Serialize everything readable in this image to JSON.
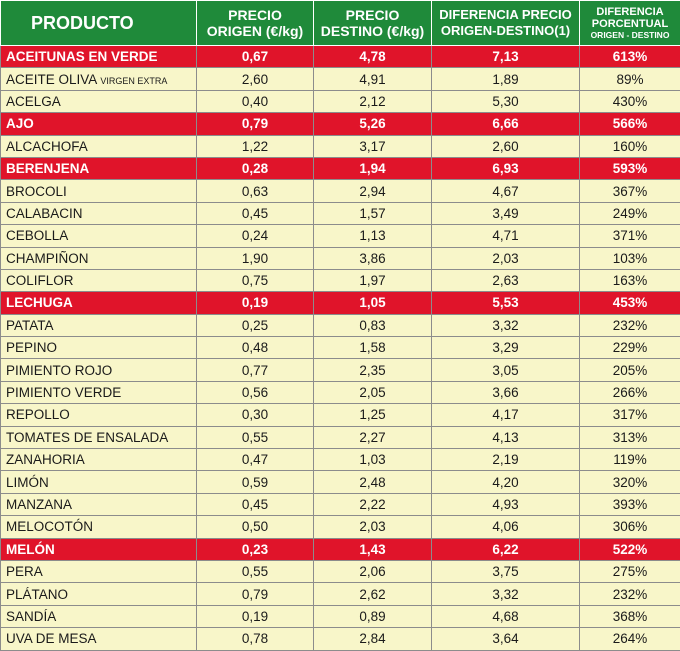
{
  "headers": {
    "producto": "PRODUCTO",
    "precio_origen": [
      "PRECIO",
      "ORIGEN (€/kg)"
    ],
    "precio_destino": [
      "PRECIO",
      "DESTINO (€/kg)"
    ],
    "diferencia": [
      "DIFERENCIA PRECIO",
      "ORIGEN-DESTINO(1)"
    ],
    "diferencia_pct": [
      "DIFERENCIA",
      "PORCENTUAL",
      "ORIGEN - DESTINO"
    ]
  },
  "colors": {
    "header_bg": "#1f8a3a",
    "highlight_bg": "#e0142a",
    "row_bg": "#f8f6c9"
  },
  "rows": [
    {
      "producto": "ACEITUNAS EN VERDE",
      "nota": "",
      "origen": "0,67",
      "destino": "4,78",
      "diferencia": "7,13",
      "porcentaje": "613%",
      "destacado": true
    },
    {
      "producto": "ACEITE OLIVA",
      "nota": "VIRGEN EXTRA",
      "origen": "2,60",
      "destino": "4,91",
      "diferencia": "1,89",
      "porcentaje": "89%",
      "destacado": false
    },
    {
      "producto": "ACELGA",
      "nota": "",
      "origen": "0,40",
      "destino": "2,12",
      "diferencia": "5,30",
      "porcentaje": "430%",
      "destacado": false
    },
    {
      "producto": "AJO",
      "nota": "",
      "origen": "0,79",
      "destino": "5,26",
      "diferencia": "6,66",
      "porcentaje": "566%",
      "destacado": true
    },
    {
      "producto": "ALCACHOFA",
      "nota": "",
      "origen": "1,22",
      "destino": "3,17",
      "diferencia": "2,60",
      "porcentaje": "160%",
      "destacado": false
    },
    {
      "producto": "BERENJENA",
      "nota": "",
      "origen": "0,28",
      "destino": "1,94",
      "diferencia": "6,93",
      "porcentaje": "593%",
      "destacado": true
    },
    {
      "producto": "BROCOLI",
      "nota": "",
      "origen": "0,63",
      "destino": "2,94",
      "diferencia": "4,67",
      "porcentaje": "367%",
      "destacado": false
    },
    {
      "producto": "CALABACIN",
      "nota": "",
      "origen": "0,45",
      "destino": "1,57",
      "diferencia": "3,49",
      "porcentaje": "249%",
      "destacado": false
    },
    {
      "producto": "CEBOLLA",
      "nota": "",
      "origen": "0,24",
      "destino": "1,13",
      "diferencia": "4,71",
      "porcentaje": "371%",
      "destacado": false
    },
    {
      "producto": "CHAMPIÑON",
      "nota": "",
      "origen": "1,90",
      "destino": "3,86",
      "diferencia": "2,03",
      "porcentaje": "103%",
      "destacado": false
    },
    {
      "producto": "COLIFLOR",
      "nota": "",
      "origen": "0,75",
      "destino": "1,97",
      "diferencia": "2,63",
      "porcentaje": "163%",
      "destacado": false
    },
    {
      "producto": "LECHUGA",
      "nota": "",
      "origen": "0,19",
      "destino": "1,05",
      "diferencia": "5,53",
      "porcentaje": "453%",
      "destacado": true
    },
    {
      "producto": "PATATA",
      "nota": "",
      "origen": "0,25",
      "destino": "0,83",
      "diferencia": "3,32",
      "porcentaje": "232%",
      "destacado": false
    },
    {
      "producto": "PEPINO",
      "nota": "",
      "origen": "0,48",
      "destino": "1,58",
      "diferencia": "3,29",
      "porcentaje": "229%",
      "destacado": false
    },
    {
      "producto": "PIMIENTO ROJO",
      "nota": "",
      "origen": "0,77",
      "destino": "2,35",
      "diferencia": "3,05",
      "porcentaje": "205%",
      "destacado": false
    },
    {
      "producto": "PIMIENTO VERDE",
      "nota": "",
      "origen": "0,56",
      "destino": "2,05",
      "diferencia": "3,66",
      "porcentaje": "266%",
      "destacado": false
    },
    {
      "producto": "REPOLLO",
      "nota": "",
      "origen": "0,30",
      "destino": "1,25",
      "diferencia": "4,17",
      "porcentaje": "317%",
      "destacado": false
    },
    {
      "producto": "TOMATES DE ENSALADA",
      "nota": "",
      "origen": "0,55",
      "destino": "2,27",
      "diferencia": "4,13",
      "porcentaje": "313%",
      "destacado": false
    },
    {
      "producto": "ZANAHORIA",
      "nota": "",
      "origen": "0,47",
      "destino": "1,03",
      "diferencia": "2,19",
      "porcentaje": "119%",
      "destacado": false
    },
    {
      "producto": "LIMÓN",
      "nota": "",
      "origen": "0,59",
      "destino": "2,48",
      "diferencia": "4,20",
      "porcentaje": "320%",
      "destacado": false
    },
    {
      "producto": "MANZANA",
      "nota": "",
      "origen": "0,45",
      "destino": "2,22",
      "diferencia": "4,93",
      "porcentaje": "393%",
      "destacado": false
    },
    {
      "producto": "MELOCOTÓN",
      "nota": "",
      "origen": "0,50",
      "destino": "2,03",
      "diferencia": "4,06",
      "porcentaje": "306%",
      "destacado": false
    },
    {
      "producto": "MELÓN",
      "nota": "",
      "origen": "0,23",
      "destino": "1,43",
      "diferencia": "6,22",
      "porcentaje": "522%",
      "destacado": true
    },
    {
      "producto": "PERA",
      "nota": "",
      "origen": "0,55",
      "destino": "2,06",
      "diferencia": "3,75",
      "porcentaje": "275%",
      "destacado": false
    },
    {
      "producto": "PLÁTANO",
      "nota": "",
      "origen": "0,79",
      "destino": "2,62",
      "diferencia": "3,32",
      "porcentaje": "232%",
      "destacado": false
    },
    {
      "producto": "SANDÍA",
      "nota": "",
      "origen": "0,19",
      "destino": "0,89",
      "diferencia": "4,68",
      "porcentaje": "368%",
      "destacado": false
    },
    {
      "producto": "UVA DE MESA",
      "nota": "",
      "origen": "0,78",
      "destino": "2,84",
      "diferencia": "3,64",
      "porcentaje": "264%",
      "destacado": false
    }
  ]
}
